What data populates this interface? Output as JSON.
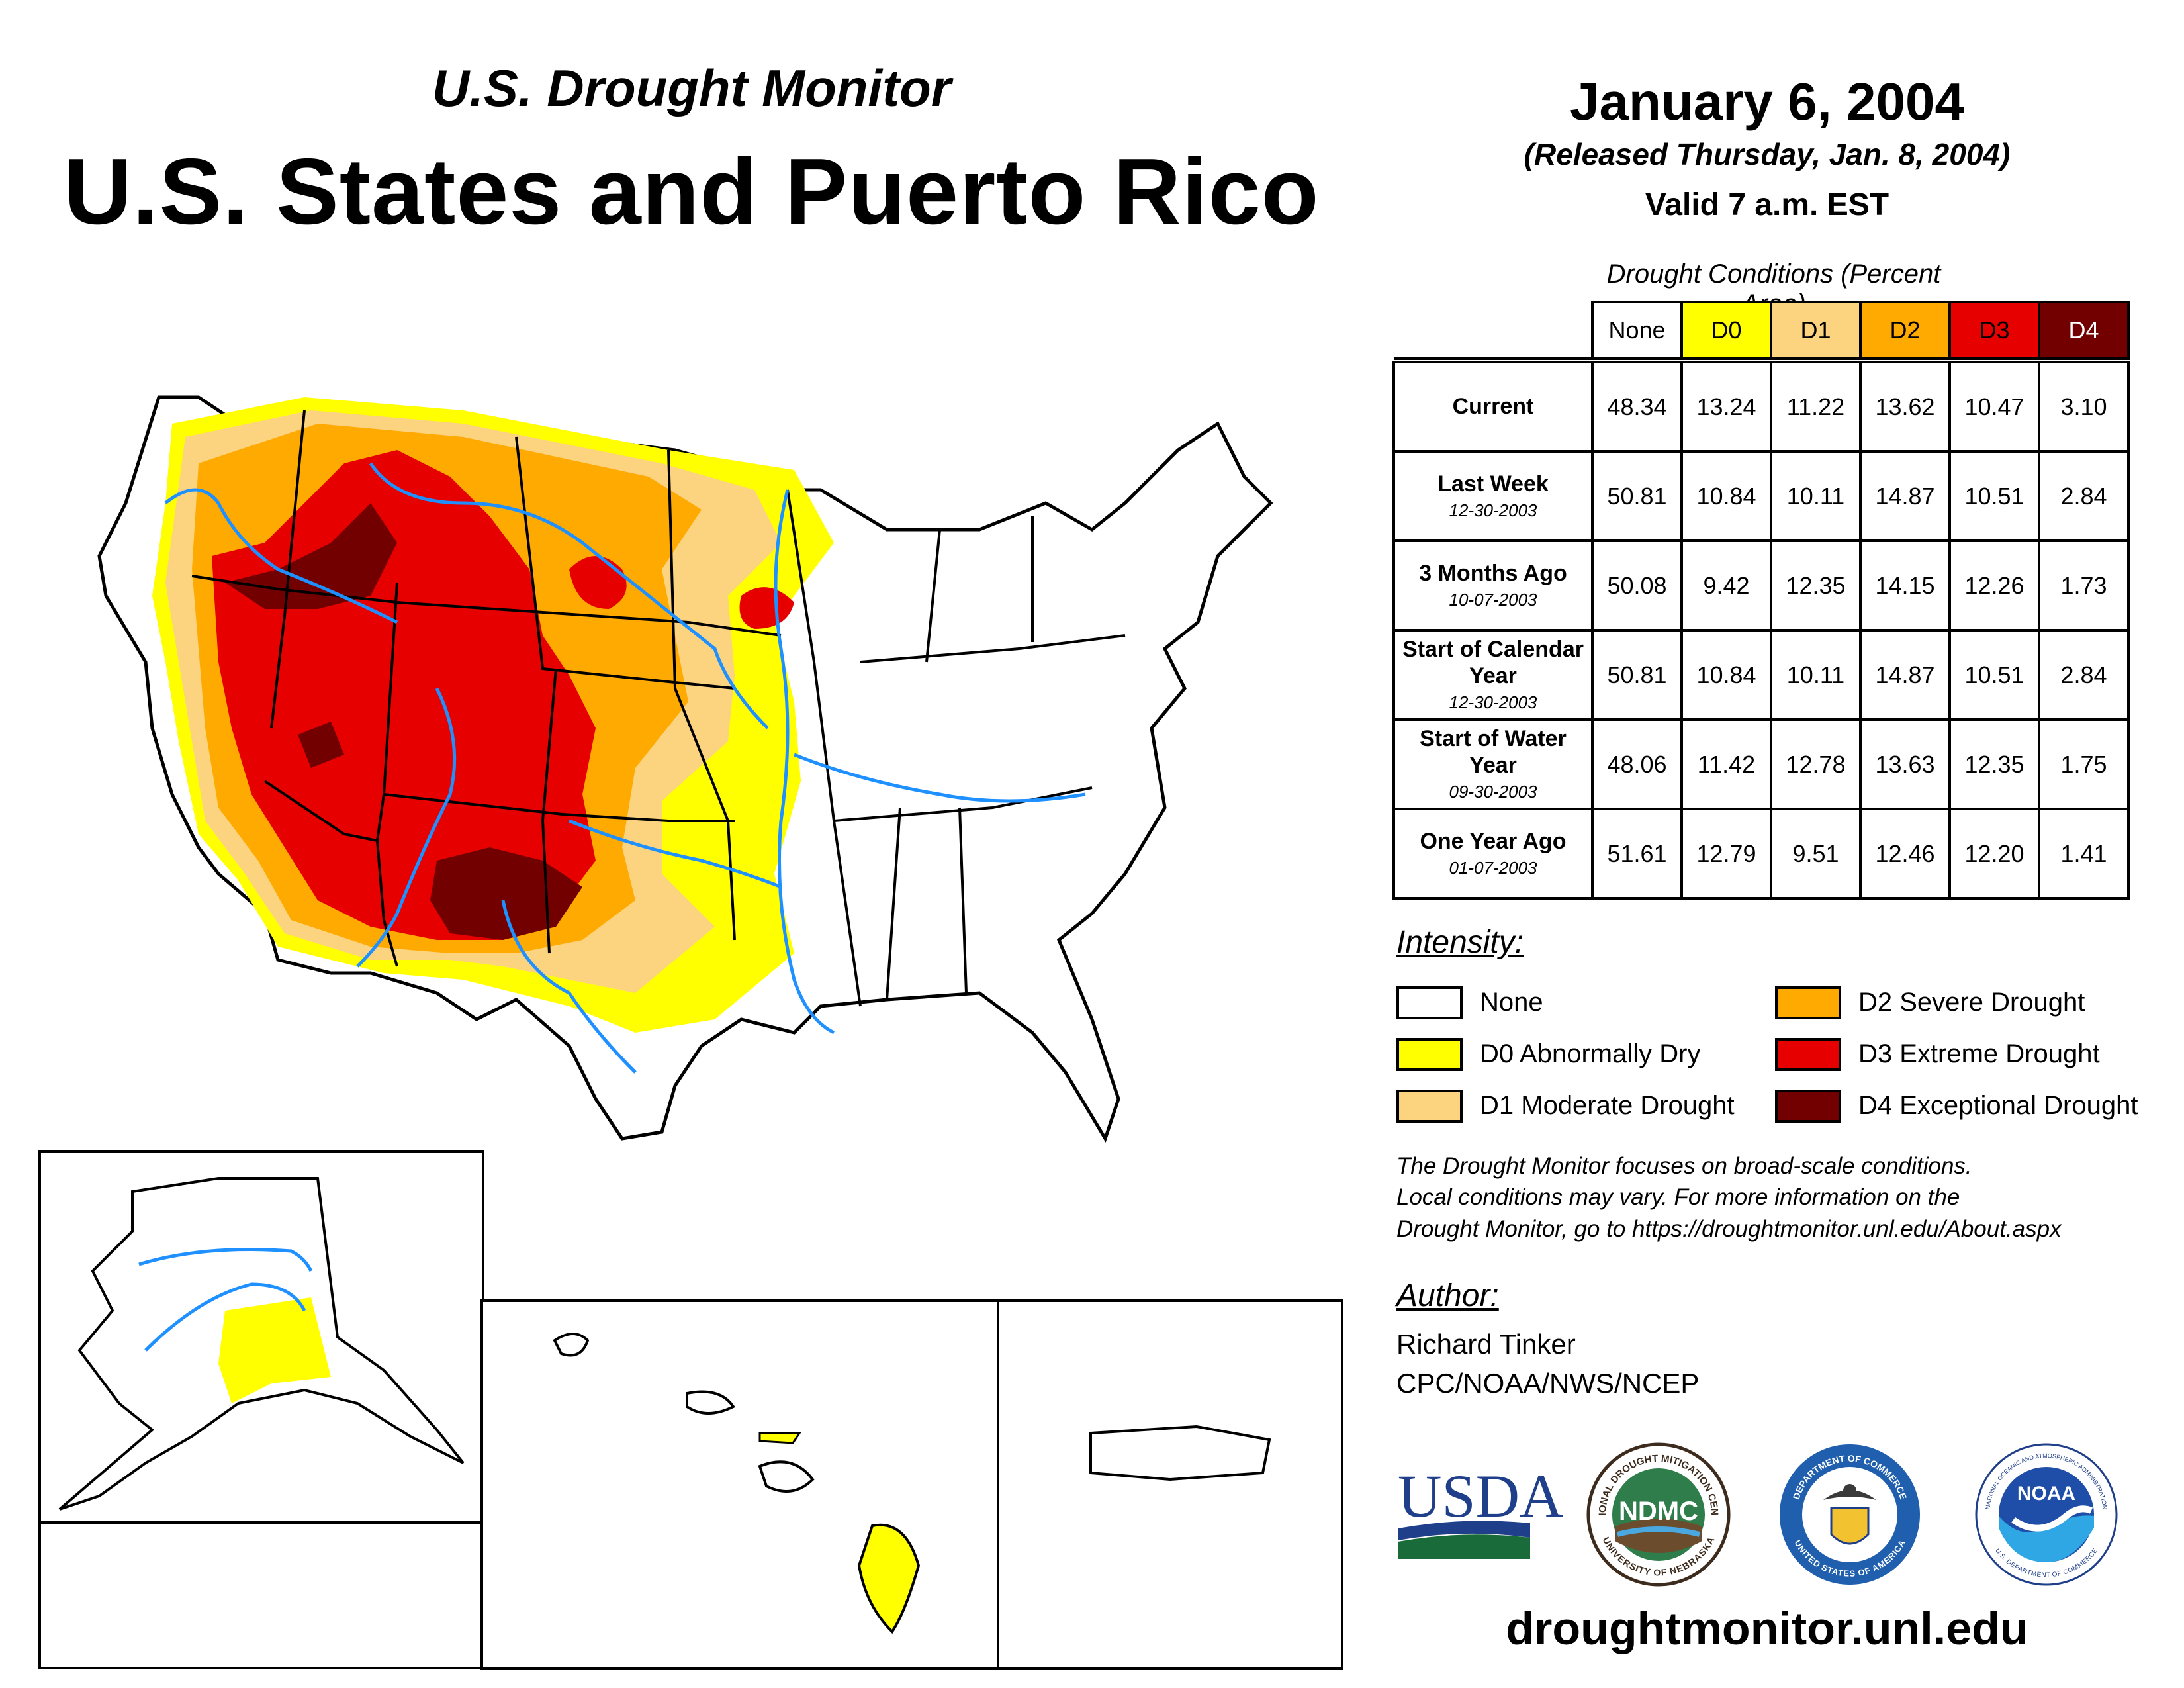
{
  "header": {
    "subtitle": "U.S. Drought Monitor",
    "title": "U.S. States and Puerto Rico",
    "date": "January 6, 2004",
    "released": "(Released Thursday, Jan. 8, 2004)",
    "valid": "Valid 7 a.m. EST"
  },
  "table": {
    "caption": "Drought Conditions (Percent Area)",
    "columns": [
      "None",
      "D0",
      "D1",
      "D2",
      "D3",
      "D4"
    ],
    "column_colors": [
      "#ffffff",
      "#ffff00",
      "#fcd37f",
      "#ffaa00",
      "#e60000",
      "#730000"
    ],
    "rows": [
      {
        "label": "Current",
        "date": "",
        "values": [
          "48.34",
          "13.24",
          "11.22",
          "13.62",
          "10.47",
          "3.10"
        ]
      },
      {
        "label": "Last Week",
        "date": "12-30-2003",
        "values": [
          "50.81",
          "10.84",
          "10.11",
          "14.87",
          "10.51",
          "2.84"
        ]
      },
      {
        "label": "3 Months Ago",
        "date": "10-07-2003",
        "values": [
          "50.08",
          "9.42",
          "12.35",
          "14.15",
          "12.26",
          "1.73"
        ]
      },
      {
        "label": "Start of Calendar Year",
        "date": "12-30-2003",
        "values": [
          "50.81",
          "10.84",
          "10.11",
          "14.87",
          "10.51",
          "2.84"
        ]
      },
      {
        "label": "Start of Water Year",
        "date": "09-30-2003",
        "values": [
          "48.06",
          "11.42",
          "12.78",
          "13.63",
          "12.35",
          "1.75"
        ]
      },
      {
        "label": "One Year Ago",
        "date": "01-07-2003",
        "values": [
          "51.61",
          "12.79",
          "9.51",
          "12.46",
          "12.20",
          "1.41"
        ]
      }
    ]
  },
  "legend": {
    "heading": "Intensity:",
    "items": [
      {
        "label": "None",
        "color": "#ffffff"
      },
      {
        "label": "D0 Abnormally Dry",
        "color": "#ffff00"
      },
      {
        "label": "D1 Moderate Drought",
        "color": "#fcd37f"
      },
      {
        "label": "D2 Severe Drought",
        "color": "#ffaa00"
      },
      {
        "label": "D3 Extreme Drought",
        "color": "#e60000"
      },
      {
        "label": "D4 Exceptional Drought",
        "color": "#730000"
      }
    ]
  },
  "note": {
    "line1": "The Drought Monitor focuses on broad-scale conditions.",
    "line2": "Local conditions may vary. For more information on the",
    "line3": "Drought Monitor, go to https://droughtmonitor.unl.edu/About.aspx"
  },
  "author": {
    "heading": "Author:",
    "name": "Richard Tinker",
    "org": "CPC/NOAA/NWS/NCEP"
  },
  "logos": {
    "usda": "USDA",
    "ndmc": "NDMC",
    "ndmc_ring_top": "NATIONAL DROUGHT MITIGATION CENTER",
    "ndmc_ring_bottom": "UNIVERSITY OF NEBRASKA",
    "doc_ring_top": "DEPARTMENT OF COMMERCE",
    "doc_ring_bottom": "UNITED STATES OF AMERICA",
    "noaa": "NOAA",
    "noaa_ring_top": "NATIONAL OCEANIC AND ATMOSPHERIC ADMINISTRATION",
    "noaa_ring_bottom": "U.S. DEPARTMENT OF COMMERCE"
  },
  "website": "droughtmonitor.unl.edu",
  "colors": {
    "water": "#1e90ff",
    "border": "#000000"
  }
}
